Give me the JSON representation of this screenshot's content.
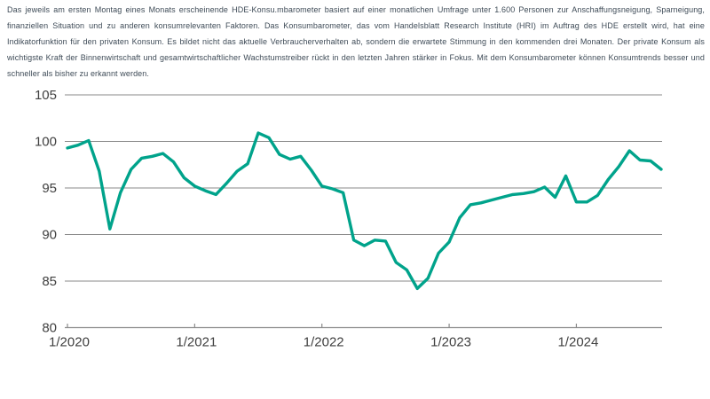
{
  "intro": {
    "text": "Das jeweils am ersten Montag eines Monats erscheinende HDE-Konsu.mbarometer basiert auf einer monatlichen Umfrage unter 1.600 Personen zur Anschaffungsneigung, Sparneigung, finanziellen Situation und zu anderen konsumrelevanten Faktoren. Das Konsumbarometer, das vom Handelsblatt Research Institute (HRI) im Auftrag des HDE erstellt wird, hat eine Indikatorfunktion für den privaten Konsum. Es bildet nicht das aktuelle Verbraucherverhalten ab, sondern die erwartete Stimmung in den kommenden drei Monaten. Der private Konsum als wichtigste Kraft der Binnenwirtschaft und gesamtwirtschaftlicher Wachstumstreiber rückt in den letzten Jahren stärker in Fokus. Mit dem Konsumbarometer können Konsumtrends besser und schneller als bisher zu erkannt werden."
  },
  "chart_data": {
    "type": "line",
    "title": "",
    "series_name": "HDE-Konsumbarometer",
    "x": [
      "1/2020",
      "2/2020",
      "3/2020",
      "4/2020",
      "5/2020",
      "6/2020",
      "7/2020",
      "8/2020",
      "9/2020",
      "10/2020",
      "11/2020",
      "12/2020",
      "1/2021",
      "2/2021",
      "3/2021",
      "4/2021",
      "5/2021",
      "6/2021",
      "7/2021",
      "8/2021",
      "9/2021",
      "10/2021",
      "11/2021",
      "12/2021",
      "1/2022",
      "2/2022",
      "3/2022",
      "4/2022",
      "5/2022",
      "6/2022",
      "7/2022",
      "8/2022",
      "9/2022",
      "10/2022",
      "11/2022",
      "12/2022",
      "1/2023",
      "2/2023",
      "3/2023",
      "4/2023",
      "5/2023",
      "6/2023",
      "7/2023",
      "8/2023",
      "9/2023",
      "10/2023",
      "11/2023",
      "12/2023",
      "1/2024",
      "2/2024",
      "3/2024",
      "4/2024",
      "5/2024",
      "6/2024",
      "7/2024",
      "8/2024",
      "9/2024"
    ],
    "values": [
      99.3,
      99.6,
      100.1,
      96.8,
      90.6,
      94.5,
      97.0,
      98.2,
      98.4,
      98.7,
      97.8,
      96.1,
      95.2,
      94.7,
      94.3,
      95.5,
      96.8,
      97.6,
      100.9,
      100.4,
      98.6,
      98.1,
      98.4,
      96.9,
      95.2,
      94.9,
      94.5,
      89.4,
      88.8,
      89.4,
      89.3,
      87.0,
      86.2,
      84.2,
      85.3,
      88.0,
      89.2,
      91.8,
      93.2,
      93.4,
      93.7,
      94.0,
      94.3,
      94.4,
      94.6,
      95.1,
      94.0,
      96.3,
      93.5,
      93.5,
      94.2,
      95.9,
      97.3,
      99.0,
      98.0,
      97.9,
      97.0
    ],
    "xtick_labels": [
      "1/2020",
      "1/2021",
      "1/2022",
      "1/2023",
      "1/2024"
    ],
    "yticks": [
      105,
      100,
      95,
      90,
      85,
      80
    ],
    "ylim": [
      80,
      105
    ],
    "xlabel": "",
    "ylabel": "",
    "grid": "on",
    "legend_position": "none",
    "line_color": "#00a38b",
    "grid_color": "#8a8a8a",
    "label_color": "#404040"
  }
}
